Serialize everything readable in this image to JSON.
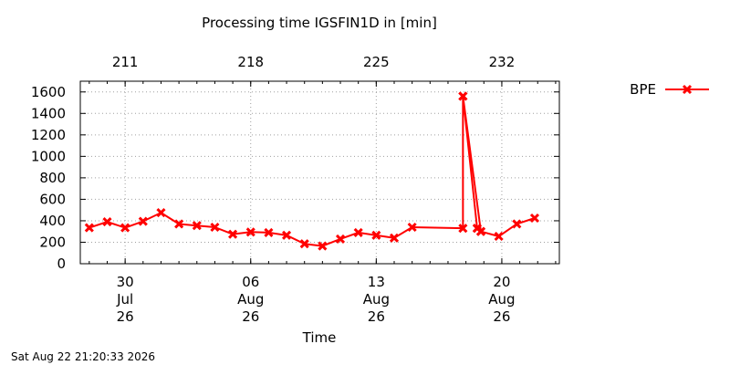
{
  "chart_data": {
    "type": "line",
    "title": "Processing time IGSFIN1D in [min]",
    "xlabel": "Time",
    "ylabel": "",
    "timestamp": "Sat Aug 22 21:20:33 2026",
    "ylim": [
      0,
      1700
    ],
    "y_ticks": [
      0,
      200,
      400,
      600,
      800,
      1000,
      1200,
      1400,
      1600
    ],
    "xlim": [
      "2026-07-27T12:00",
      "2026-08-23T05:00"
    ],
    "x_ticks_bottom": [
      {
        "date": "2026-07-30",
        "day": "30",
        "month": "Jul",
        "year": "26"
      },
      {
        "date": "2026-08-06",
        "day": "06",
        "month": "Aug",
        "year": "26"
      },
      {
        "date": "2026-08-13",
        "day": "13",
        "month": "Aug",
        "year": "26"
      },
      {
        "date": "2026-08-20",
        "day": "20",
        "month": "Aug",
        "year": "26"
      }
    ],
    "x_ticks_top": [
      {
        "date": "2026-07-30",
        "label": "211"
      },
      {
        "date": "2026-08-06",
        "label": "218"
      },
      {
        "date": "2026-08-13",
        "label": "225"
      },
      {
        "date": "2026-08-20",
        "label": "232"
      }
    ],
    "grid": true,
    "legend_position": "top-right",
    "series": [
      {
        "name": "BPE",
        "color": "#ff0000",
        "marker": "x",
        "points": [
          {
            "x": "2026-07-28",
            "y": 335
          },
          {
            "x": "2026-07-29",
            "y": 390
          },
          {
            "x": "2026-07-30",
            "y": 335
          },
          {
            "x": "2026-07-31",
            "y": 395
          },
          {
            "x": "2026-08-01",
            "y": 475
          },
          {
            "x": "2026-08-02",
            "y": 370
          },
          {
            "x": "2026-08-03",
            "y": 355
          },
          {
            "x": "2026-08-04",
            "y": 340
          },
          {
            "x": "2026-08-05",
            "y": 275
          },
          {
            "x": "2026-08-06",
            "y": 295
          },
          {
            "x": "2026-08-07",
            "y": 290
          },
          {
            "x": "2026-08-08",
            "y": 265
          },
          {
            "x": "2026-08-09",
            "y": 185
          },
          {
            "x": "2026-08-10",
            "y": 165
          },
          {
            "x": "2026-08-11",
            "y": 230
          },
          {
            "x": "2026-08-12",
            "y": 290
          },
          {
            "x": "2026-08-13",
            "y": 265
          },
          {
            "x": "2026-08-14",
            "y": 240
          },
          {
            "x": "2026-08-15",
            "y": 340
          },
          {
            "x": "2026-08-17T20:00",
            "y": 330
          },
          {
            "x": "2026-08-17T20:00",
            "y": 1560
          },
          {
            "x": "2026-08-18T15:00",
            "y": 330
          },
          {
            "x": "2026-08-18T15:00",
            "y": 330
          },
          {
            "x": "2026-08-18T20:00",
            "y": 300
          },
          {
            "x": "2026-08-17T20:00",
            "y": 1560
          },
          {
            "x": "2026-08-18T20:00",
            "y": 300
          },
          {
            "x": "2026-08-19T20:00",
            "y": 255
          },
          {
            "x": "2026-08-20T20:00",
            "y": 370
          },
          {
            "x": "2026-08-21T20:00",
            "y": 425
          }
        ]
      }
    ]
  }
}
